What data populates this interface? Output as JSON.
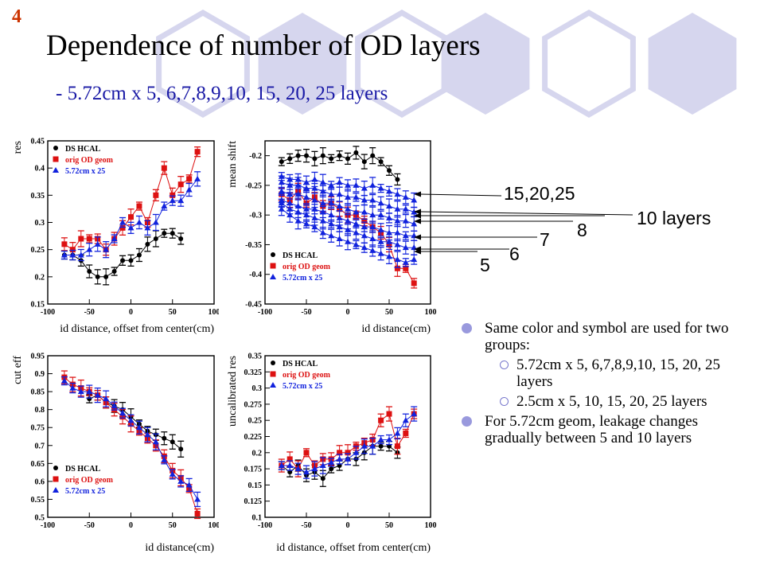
{
  "slide": {
    "number": "4",
    "title": "Dependence of number of OD layers",
    "subtitle": "- 5.72cm x 5, 6,7,8,9,10, 15, 20, 25 layers"
  },
  "colors": {
    "ds_hcal": "#000000",
    "orig_od": "#dd1111",
    "layers_5_72": "#1122dd",
    "hex_fill": "#d6d6ee",
    "hex_stroke": "#d6d6ee"
  },
  "layer_annotations": [
    {
      "id": "15-20-25",
      "text": "15,20,25"
    },
    {
      "id": "10",
      "text": "10 layers"
    },
    {
      "id": "8",
      "text": "8"
    },
    {
      "id": "7",
      "text": "7"
    },
    {
      "id": "6",
      "text": "6"
    },
    {
      "id": "5",
      "text": "5"
    }
  ],
  "bullets": [
    {
      "text": "Same color and symbol are used for two groups:",
      "sub": [
        "5.72cm x 5, 6,7,8,9,10, 15, 20, 25 layers",
        "2.5cm x 5, 10, 15, 20, 25 layers"
      ]
    },
    {
      "text": "For 5.72cm geom, leakage changes gradually between 5 and 10 layers",
      "sub": []
    }
  ],
  "chart_data": [
    {
      "id": "res",
      "type": "scatter",
      "ylabel": "res",
      "xlabel": "id distance, offset from center(cm)",
      "xlim": [
        -100,
        100
      ],
      "ylim": [
        0.15,
        0.45
      ],
      "xticks": [
        "-100",
        "-50",
        "0",
        "50",
        "100"
      ],
      "yticks": [
        "0.15",
        "0.2",
        "0.25",
        "0.3",
        "0.35",
        "0.4",
        "0.45"
      ],
      "legend_position": "top-left",
      "series": [
        {
          "name": "DS HCAL",
          "color": "#000000",
          "marker": "circle",
          "x": [
            -80,
            -70,
            -60,
            -50,
            -40,
            -30,
            -20,
            -10,
            0,
            10,
            20,
            30,
            40,
            50,
            60
          ],
          "y": [
            0.24,
            0.24,
            0.23,
            0.21,
            0.2,
            0.2,
            0.21,
            0.23,
            0.23,
            0.24,
            0.26,
            0.27,
            0.28,
            0.28,
            0.27
          ]
        },
        {
          "name": "orig OD geom",
          "color": "#dd1111",
          "marker": "square",
          "x": [
            -80,
            -70,
            -60,
            -50,
            -40,
            -30,
            -20,
            -10,
            0,
            10,
            20,
            30,
            40,
            50,
            60,
            70,
            80
          ],
          "y": [
            0.26,
            0.25,
            0.27,
            0.27,
            0.27,
            0.25,
            0.27,
            0.29,
            0.31,
            0.33,
            0.3,
            0.35,
            0.4,
            0.35,
            0.37,
            0.38,
            0.43
          ]
        },
        {
          "name": "5.72cm x 25",
          "color": "#1122dd",
          "marker": "triangle",
          "x": [
            -80,
            -70,
            -60,
            -50,
            -40,
            -30,
            -20,
            -10,
            0,
            10,
            20,
            30,
            40,
            50,
            60,
            70,
            80
          ],
          "y": [
            0.24,
            0.24,
            0.24,
            0.25,
            0.26,
            0.25,
            0.27,
            0.3,
            0.29,
            0.3,
            0.29,
            0.3,
            0.33,
            0.34,
            0.34,
            0.36,
            0.38
          ]
        }
      ]
    },
    {
      "id": "mean-shift",
      "type": "scatter",
      "ylabel": "mean shift",
      "xlabel": "id distance(cm)",
      "xlim": [
        -100,
        100
      ],
      "ylim": [
        -0.45,
        -0.175
      ],
      "xticks": [
        "-100",
        "-50",
        "0",
        "50",
        "100"
      ],
      "yticks": [
        "-0.45",
        "-0.4",
        "-0.35",
        "-0.3",
        "-0.25",
        "-0.2"
      ],
      "legend_position": "bottom-left",
      "series": [
        {
          "name": "DS HCAL",
          "color": "#000000",
          "marker": "circle",
          "x": [
            -80,
            -70,
            -60,
            -50,
            -40,
            -30,
            -20,
            -10,
            0,
            10,
            20,
            30,
            40,
            50,
            60
          ],
          "y": [
            -0.21,
            -0.205,
            -0.2,
            -0.2,
            -0.205,
            -0.2,
            -0.205,
            -0.2,
            -0.205,
            -0.195,
            -0.21,
            -0.2,
            -0.21,
            -0.225,
            -0.24
          ]
        },
        {
          "name": "orig OD geom",
          "color": "#dd1111",
          "marker": "square",
          "x": [
            -80,
            -70,
            -60,
            -50,
            -40,
            -30,
            -20,
            -10,
            0,
            10,
            20,
            30,
            40,
            50,
            60,
            70,
            80
          ],
          "y": [
            -0.265,
            -0.275,
            -0.26,
            -0.28,
            -0.27,
            -0.285,
            -0.28,
            -0.29,
            -0.3,
            -0.3,
            -0.31,
            -0.32,
            -0.33,
            -0.35,
            -0.39,
            -0.39,
            -0.415
          ]
        },
        {
          "name": "15,20,25 layers",
          "color": "#1122dd",
          "marker": "triangle",
          "x": [
            -80,
            -70,
            -60,
            -50,
            -40,
            -30,
            -20,
            -10,
            0,
            10,
            20,
            30,
            40,
            50,
            60,
            70,
            80
          ],
          "y": [
            -0.235,
            -0.24,
            -0.24,
            -0.245,
            -0.24,
            -0.245,
            -0.25,
            -0.245,
            -0.25,
            -0.25,
            -0.255,
            -0.25,
            -0.255,
            -0.26,
            -0.265,
            -0.27,
            -0.275
          ]
        },
        {
          "name": "10 layers",
          "color": "#1122dd",
          "marker": "triangle",
          "x": [
            -80,
            -70,
            -60,
            -50,
            -40,
            -30,
            -20,
            -10,
            0,
            10,
            20,
            30,
            40,
            50,
            60,
            70,
            80
          ],
          "y": [
            -0.245,
            -0.25,
            -0.25,
            -0.255,
            -0.255,
            -0.26,
            -0.265,
            -0.265,
            -0.27,
            -0.27,
            -0.275,
            -0.275,
            -0.28,
            -0.285,
            -0.29,
            -0.29,
            -0.295
          ]
        },
        {
          "name": "8 layers",
          "color": "#1122dd",
          "marker": "triangle",
          "x": [
            -80,
            -70,
            -60,
            -50,
            -40,
            -30,
            -20,
            -10,
            0,
            10,
            20,
            30,
            40,
            50,
            60,
            70,
            80
          ],
          "y": [
            -0.26,
            -0.265,
            -0.265,
            -0.27,
            -0.275,
            -0.28,
            -0.28,
            -0.285,
            -0.29,
            -0.295,
            -0.295,
            -0.3,
            -0.3,
            -0.305,
            -0.31,
            -0.31,
            -0.315
          ]
        },
        {
          "name": "7 layers",
          "color": "#1122dd",
          "marker": "triangle",
          "x": [
            -80,
            -70,
            -60,
            -50,
            -40,
            -30,
            -20,
            -10,
            0,
            10,
            20,
            30,
            40,
            50,
            60,
            70,
            80
          ],
          "y": [
            -0.275,
            -0.28,
            -0.285,
            -0.29,
            -0.29,
            -0.295,
            -0.3,
            -0.305,
            -0.31,
            -0.315,
            -0.32,
            -0.32,
            -0.325,
            -0.33,
            -0.33,
            -0.335,
            -0.335
          ]
        },
        {
          "name": "6 layers",
          "color": "#1122dd",
          "marker": "triangle",
          "x": [
            -80,
            -70,
            -60,
            -50,
            -40,
            -30,
            -20,
            -10,
            0,
            10,
            20,
            30,
            40,
            50,
            60,
            70,
            80
          ],
          "y": [
            -0.28,
            -0.29,
            -0.295,
            -0.3,
            -0.305,
            -0.31,
            -0.315,
            -0.32,
            -0.325,
            -0.33,
            -0.335,
            -0.34,
            -0.345,
            -0.345,
            -0.35,
            -0.355,
            -0.355
          ]
        },
        {
          "name": "5 layers",
          "color": "#1122dd",
          "marker": "triangle",
          "x": [
            -80,
            -70,
            -60,
            -50,
            -40,
            -30,
            -20,
            -10,
            0,
            10,
            20,
            30,
            40,
            50,
            60,
            70,
            80
          ],
          "y": [
            -0.29,
            -0.3,
            -0.31,
            -0.315,
            -0.32,
            -0.33,
            -0.335,
            -0.34,
            -0.345,
            -0.35,
            -0.355,
            -0.36,
            -0.365,
            -0.37,
            -0.375,
            -0.38,
            -0.375
          ]
        }
      ]
    },
    {
      "id": "cut-eff",
      "type": "scatter",
      "ylabel": "cut eff",
      "xlabel": "id distance(cm)",
      "xlim": [
        -100,
        100
      ],
      "ylim": [
        0.5,
        0.95
      ],
      "xticks": [
        "-100",
        "-50",
        "0",
        "50",
        "100"
      ],
      "yticks": [
        "0.5",
        "0.55",
        "0.6",
        "0.65",
        "0.7",
        "0.75",
        "0.8",
        "0.85",
        "0.9",
        "0.95"
      ],
      "legend_position": "bottom-left",
      "series": [
        {
          "name": "DS HCAL",
          "color": "#000000",
          "marker": "circle",
          "x": [
            -50,
            -40,
            -30,
            -20,
            -10,
            0,
            10,
            20,
            30,
            40,
            50,
            60
          ],
          "y": [
            0.83,
            0.84,
            0.82,
            0.81,
            0.8,
            0.78,
            0.76,
            0.74,
            0.73,
            0.72,
            0.71,
            0.69
          ]
        },
        {
          "name": "orig OD geom",
          "color": "#dd1111",
          "marker": "square",
          "x": [
            -80,
            -70,
            -60,
            -50,
            -40,
            -30,
            -20,
            -10,
            0,
            10,
            20,
            30,
            40,
            50,
            60,
            70,
            80
          ],
          "y": [
            0.89,
            0.87,
            0.86,
            0.85,
            0.84,
            0.82,
            0.8,
            0.78,
            0.76,
            0.74,
            0.72,
            0.7,
            0.67,
            0.63,
            0.61,
            0.58,
            0.51
          ]
        },
        {
          "name": "5.72cm x 25",
          "color": "#1122dd",
          "marker": "triangle",
          "x": [
            -80,
            -70,
            -60,
            -50,
            -40,
            -30,
            -20,
            -10,
            0,
            10,
            20,
            30,
            40,
            50,
            60,
            70,
            80
          ],
          "y": [
            0.88,
            0.86,
            0.85,
            0.85,
            0.84,
            0.83,
            0.81,
            0.79,
            0.77,
            0.75,
            0.73,
            0.71,
            0.66,
            0.62,
            0.6,
            0.59,
            0.55
          ]
        }
      ]
    },
    {
      "id": "uncalibrated-res",
      "type": "scatter",
      "ylabel": "uncalibrated res",
      "xlabel": "id distance, offset from center(cm)",
      "xlim": [
        -100,
        100
      ],
      "ylim": [
        0.1,
        0.35
      ],
      "xticks": [
        "-100",
        "-50",
        "0",
        "50",
        "100"
      ],
      "yticks": [
        "0.1",
        "0.125",
        "0.15",
        "0.175",
        "0.2",
        "0.225",
        "0.25",
        "0.275",
        "0.3",
        "0.325",
        "0.35"
      ],
      "legend_position": "top-left",
      "series": [
        {
          "name": "DS HCAL",
          "color": "#000000",
          "marker": "circle",
          "x": [
            -80,
            -70,
            -60,
            -50,
            -40,
            -30,
            -20,
            -10,
            0,
            10,
            20,
            30,
            40,
            50,
            60
          ],
          "y": [
            0.18,
            0.17,
            0.18,
            0.165,
            0.17,
            0.16,
            0.175,
            0.18,
            0.19,
            0.19,
            0.2,
            0.21,
            0.21,
            0.21,
            0.2
          ]
        },
        {
          "name": "orig OD geom",
          "color": "#dd1111",
          "marker": "square",
          "x": [
            -80,
            -70,
            -60,
            -50,
            -40,
            -30,
            -20,
            -10,
            0,
            10,
            20,
            30,
            40,
            50,
            60,
            70,
            80
          ],
          "y": [
            0.18,
            0.19,
            0.175,
            0.2,
            0.18,
            0.19,
            0.19,
            0.2,
            0.2,
            0.21,
            0.215,
            0.22,
            0.25,
            0.26,
            0.21,
            0.23,
            0.26
          ]
        },
        {
          "name": "5.72cm x 25",
          "color": "#1122dd",
          "marker": "triangle",
          "x": [
            -80,
            -70,
            -60,
            -50,
            -40,
            -30,
            -20,
            -10,
            0,
            10,
            20,
            30,
            40,
            50,
            60,
            70,
            80
          ],
          "y": [
            0.18,
            0.18,
            0.175,
            0.17,
            0.175,
            0.18,
            0.185,
            0.19,
            0.19,
            0.2,
            0.21,
            0.21,
            0.22,
            0.22,
            0.23,
            0.25,
            0.26
          ]
        }
      ]
    }
  ]
}
